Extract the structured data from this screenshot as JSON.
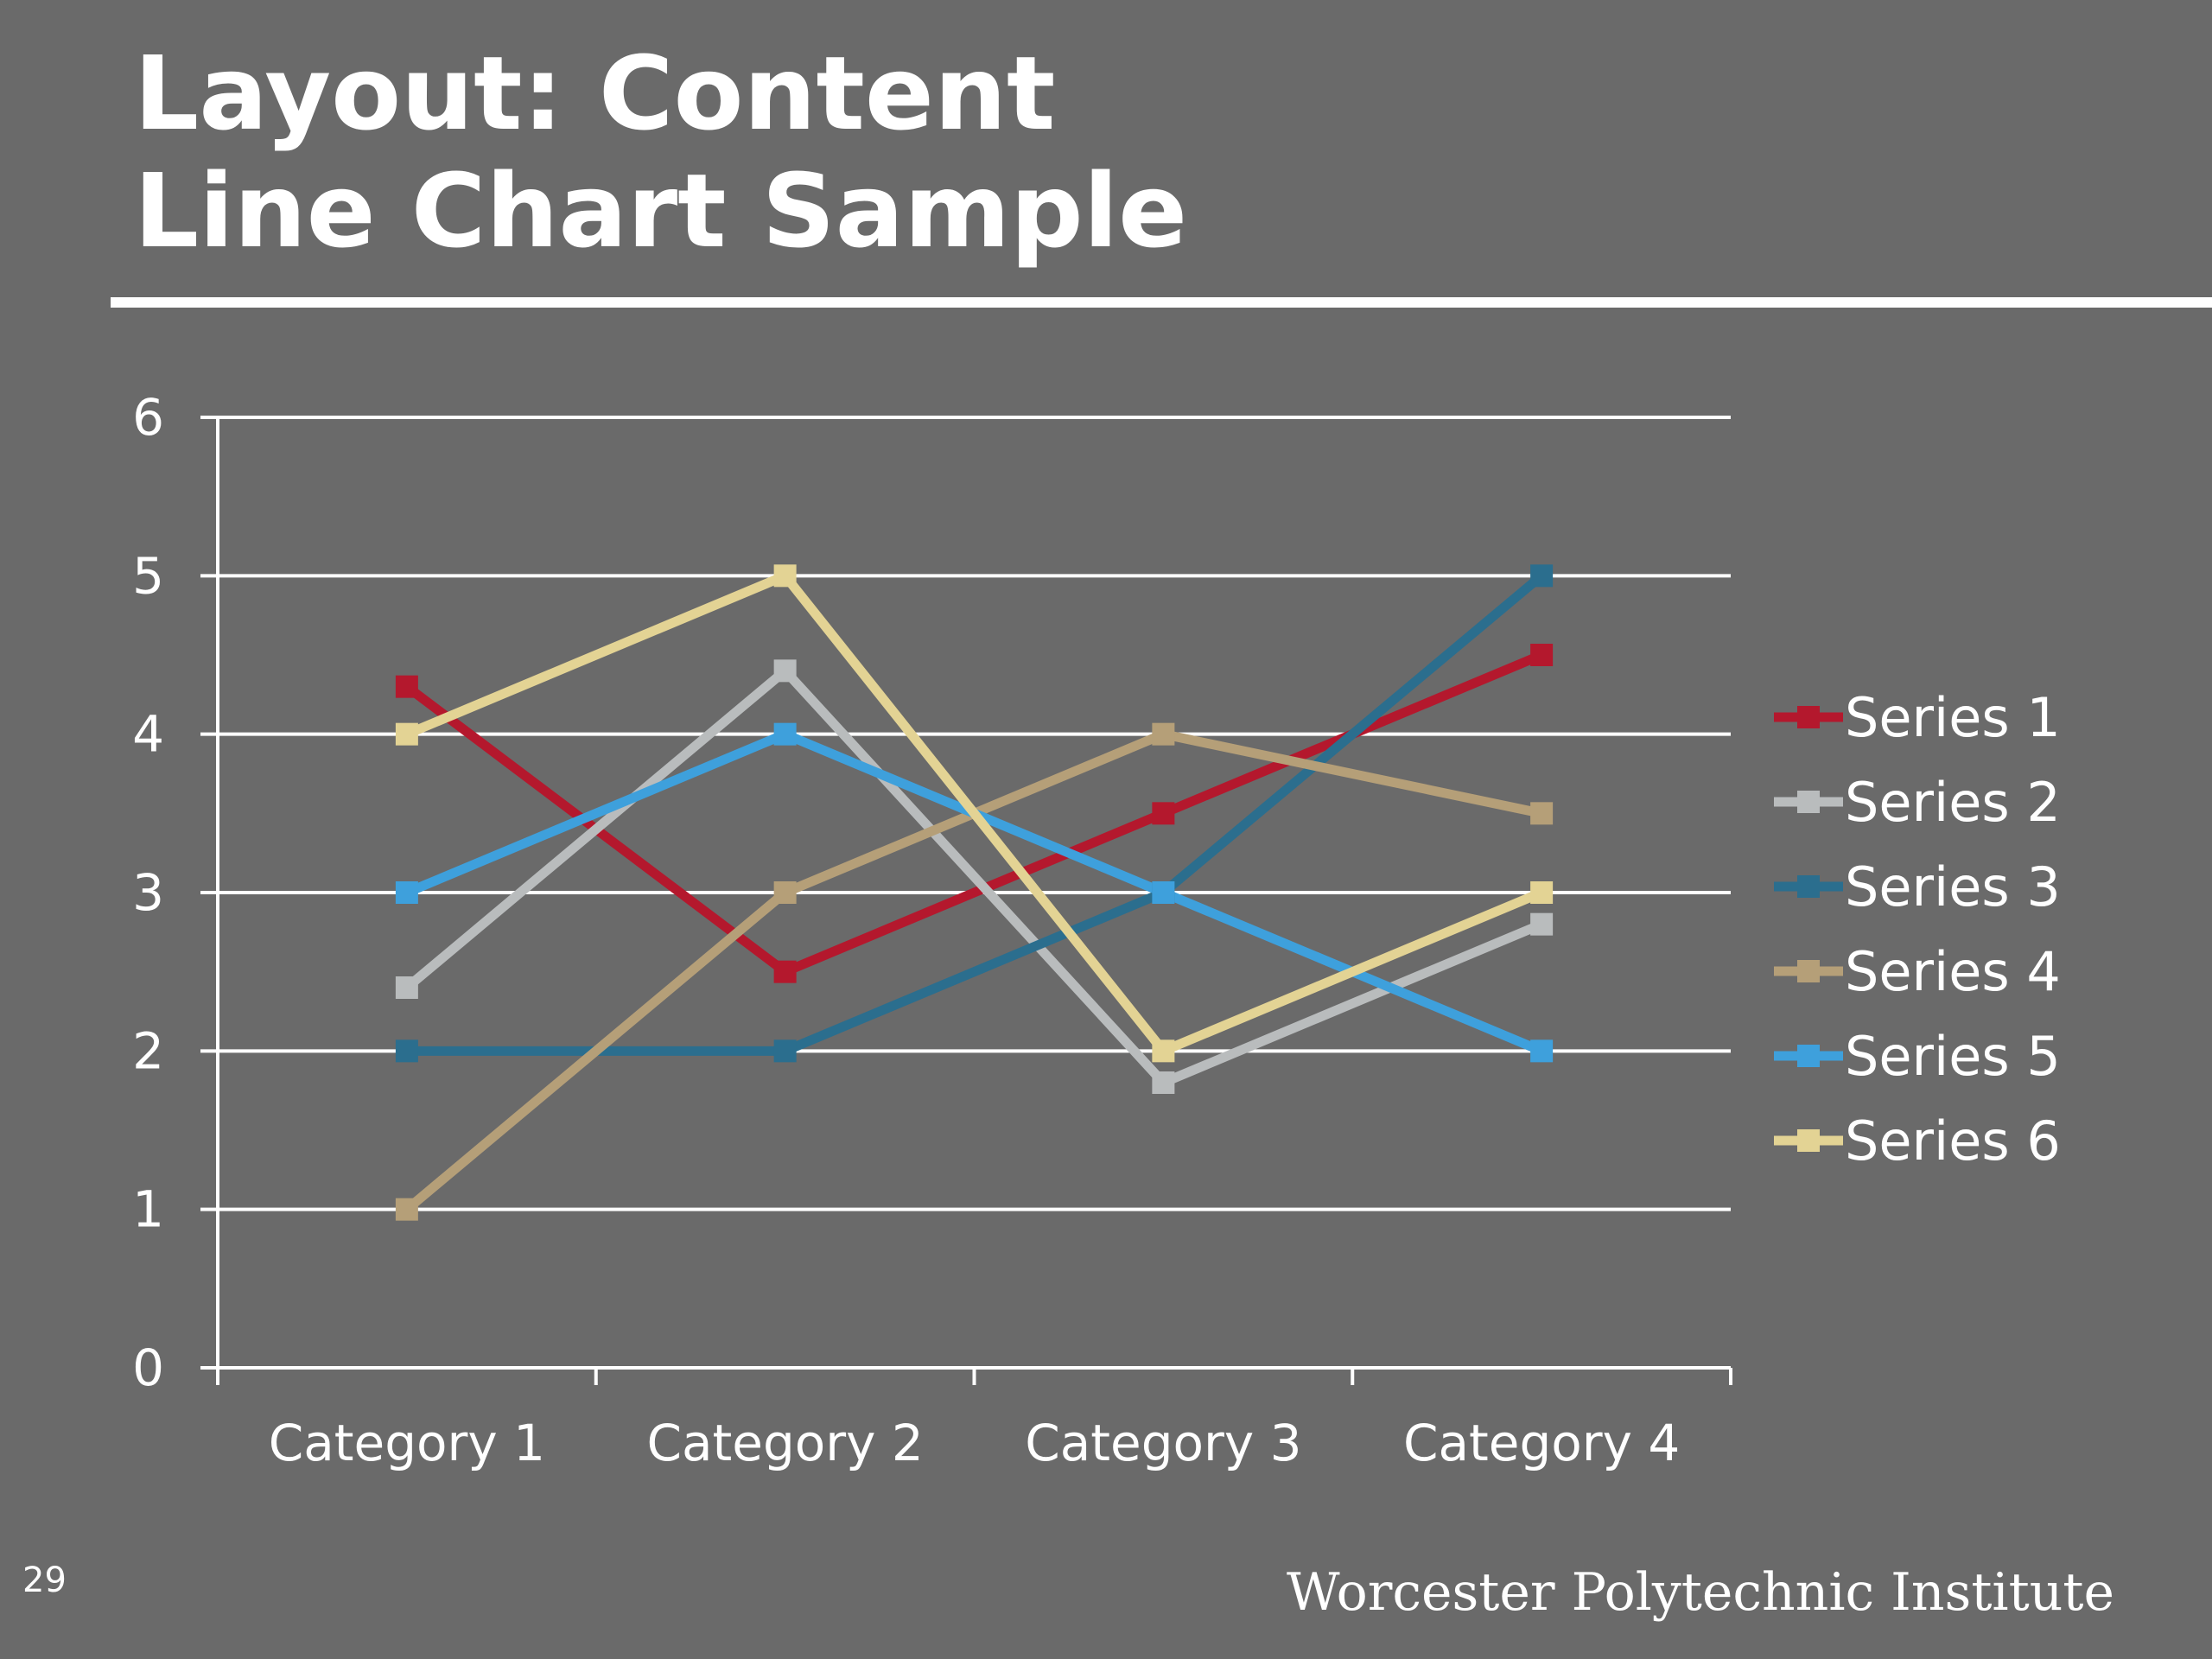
{
  "slide": {
    "title_line1": "Layout: Content",
    "title_line2": "Line Chart Sample",
    "page_number": "29",
    "organization": "Worcester Polytechnic Institute"
  },
  "chart_data": {
    "type": "line",
    "categories": [
      "Category 1",
      "Category 2",
      "Category 3",
      "Category 4"
    ],
    "ylim": [
      0,
      6
    ],
    "yticks": [
      "0",
      "1",
      "2",
      "3",
      "4",
      "5",
      "6"
    ],
    "grid": true,
    "legend_position": "right",
    "series": [
      {
        "name": "Series 1",
        "color": "#b4182d",
        "values": [
          4.3,
          2.5,
          3.5,
          4.5
        ]
      },
      {
        "name": "Series 2",
        "color": "#b9bcbd",
        "values": [
          2.4,
          4.4,
          1.8,
          2.8
        ]
      },
      {
        "name": "Series 3",
        "color": "#2b6e8e",
        "values": [
          2.0,
          2.0,
          3.0,
          5.0
        ]
      },
      {
        "name": "Series 4",
        "color": "#b59f78",
        "values": [
          1.0,
          3.0,
          4.0,
          3.5
        ]
      },
      {
        "name": "Series 5",
        "color": "#3ea0dc",
        "values": [
          3.0,
          4.0,
          3.0,
          2.0
        ]
      },
      {
        "name": "Series 6",
        "color": "#e3d394",
        "values": [
          4.0,
          5.0,
          2.0,
          3.0
        ]
      }
    ]
  }
}
